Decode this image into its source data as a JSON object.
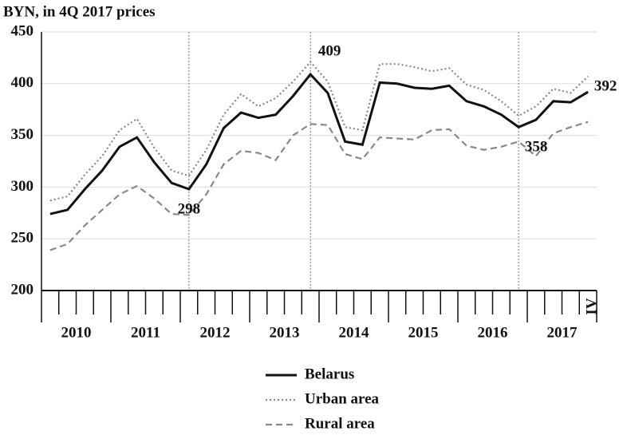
{
  "chart_data": {
    "type": "line",
    "y_label": "BYN, in 4Q 2017 prices",
    "years": [
      "2010",
      "2011",
      "2012",
      "2013",
      "2014",
      "2015",
      "2016",
      "2017"
    ],
    "last_quarter_label": "IV",
    "ylim": [
      200,
      450
    ],
    "yticks": [
      200,
      250,
      300,
      350,
      400,
      450
    ],
    "grid": true,
    "series": [
      {
        "name": "Belarus",
        "color": "#111111",
        "style": "solid",
        "values": [
          274,
          278,
          298,
          316,
          339,
          348,
          324,
          304,
          298,
          322,
          357,
          372,
          367,
          370,
          388,
          409,
          391,
          344,
          341,
          401,
          400,
          396,
          395,
          398,
          383,
          378,
          370,
          358,
          365,
          383,
          382,
          392
        ]
      },
      {
        "name": "Urban area",
        "color": "#888888",
        "style": "dotted",
        "values": [
          287,
          291,
          312,
          330,
          355,
          366,
          338,
          316,
          311,
          336,
          370,
          390,
          378,
          386,
          402,
          421,
          402,
          358,
          355,
          419,
          419,
          416,
          412,
          415,
          399,
          394,
          383,
          369,
          378,
          395,
          391,
          407
        ]
      },
      {
        "name": "Rural area",
        "color": "#888888",
        "style": "dashed",
        "values": [
          239,
          245,
          263,
          278,
          293,
          301,
          289,
          274,
          273,
          293,
          322,
          335,
          333,
          326,
          350,
          361,
          360,
          332,
          327,
          348,
          347,
          346,
          355,
          356,
          340,
          336,
          339,
          344,
          330,
          352,
          358,
          363
        ]
      }
    ]
  }
}
